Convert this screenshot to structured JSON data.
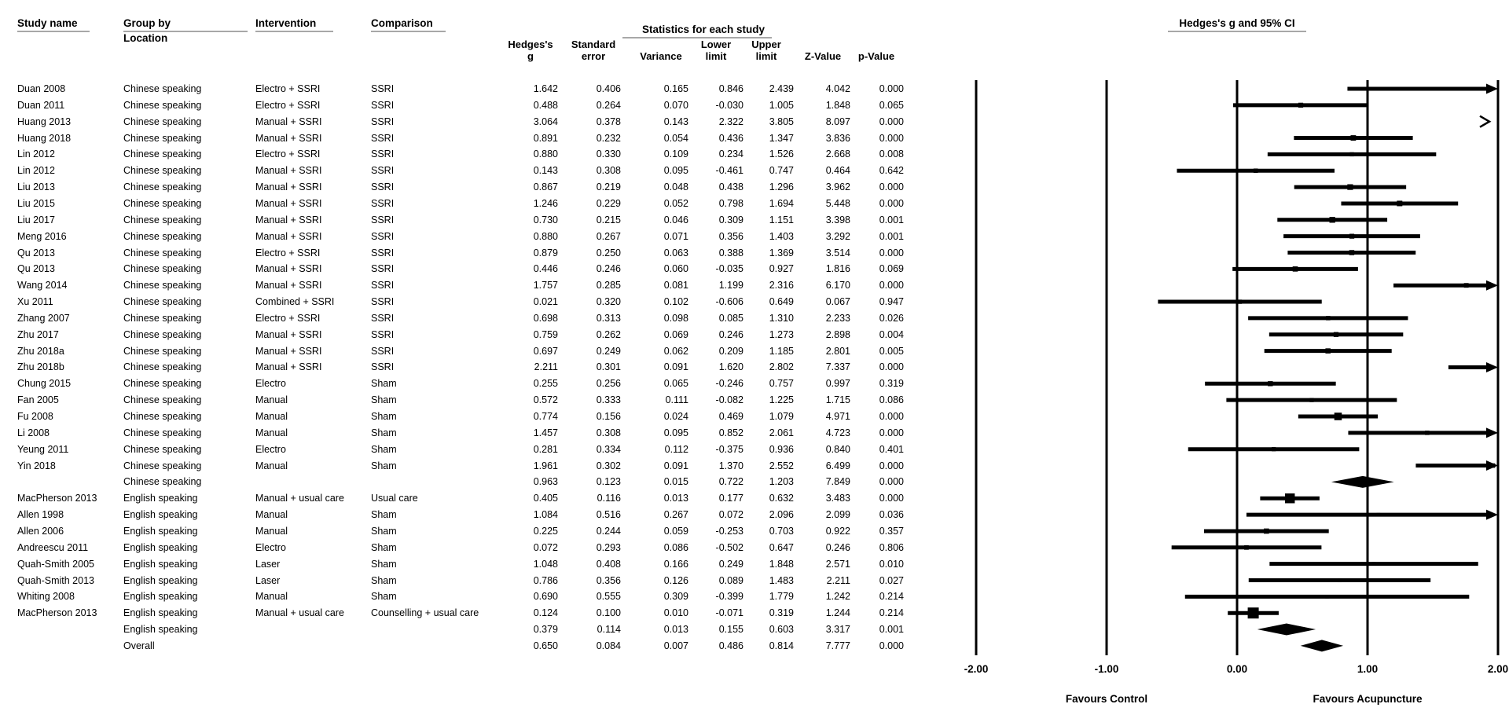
{
  "header": {
    "study": "Study name",
    "group_line1": "Group by",
    "group_line2": "Location",
    "intervention": "Intervention",
    "comparison": "Comparison",
    "stats_title": "Statistics for each study",
    "plot_title": "Hedges's g and 95% CI",
    "cols": {
      "g1": "Hedges's",
      "g2": "g",
      "se1": "Standard",
      "se2": "error",
      "variance": "Variance",
      "lo1": "Lower",
      "lo2": "limit",
      "up1": "Upper",
      "up2": "limit",
      "z": "Z-Value",
      "p": "p-Value"
    }
  },
  "axis": {
    "ticks": [
      "-2.00",
      "-1.00",
      "0.00",
      "1.00",
      "2.00"
    ],
    "tick_values": [
      -2,
      -1,
      0,
      1,
      2
    ],
    "xlim": [
      -2,
      2
    ],
    "favours_left": "Favours Control",
    "favours_right": "Favours Acupuncture"
  },
  "colors": {
    "text": "#000000",
    "underline": "#a8a8a8",
    "marker": "#000000"
  },
  "chart_data": {
    "type": "forest",
    "effect_measure": "Hedges's g",
    "xlim": [
      -2,
      2
    ],
    "rows": [
      {
        "study": "Duan 2008",
        "group": "Chinese speaking",
        "intervention": "Electro + SSRI",
        "comparison": "SSRI",
        "g": "1.642",
        "se": "0.406",
        "variance": "0.165",
        "lower": "0.846",
        "upper": "2.439",
        "z": "4.042",
        "p": "0.000",
        "kind": "study"
      },
      {
        "study": "Duan 2011",
        "group": "Chinese speaking",
        "intervention": "Electro + SSRI",
        "comparison": "SSRI",
        "g": "0.488",
        "se": "0.264",
        "variance": "0.070",
        "lower": "-0.030",
        "upper": "1.005",
        "z": "1.848",
        "p": "0.065",
        "kind": "study"
      },
      {
        "study": "Huang 2013",
        "group": "Chinese speaking",
        "intervention": "Manual + SSRI",
        "comparison": "SSRI",
        "g": "3.064",
        "se": "0.378",
        "variance": "0.143",
        "lower": "2.322",
        "upper": "3.805",
        "z": "8.097",
        "p": "0.000",
        "kind": "study"
      },
      {
        "study": "Huang 2018",
        "group": "Chinese speaking",
        "intervention": "Manual + SSRI",
        "comparison": "SSRI",
        "g": "0.891",
        "se": "0.232",
        "variance": "0.054",
        "lower": "0.436",
        "upper": "1.347",
        "z": "3.836",
        "p": "0.000",
        "kind": "study"
      },
      {
        "study": "Lin 2012",
        "group": "Chinese speaking",
        "intervention": "Electro + SSRI",
        "comparison": "SSRI",
        "g": "0.880",
        "se": "0.330",
        "variance": "0.109",
        "lower": "0.234",
        "upper": "1.526",
        "z": "2.668",
        "p": "0.008",
        "kind": "study"
      },
      {
        "study": "Lin 2012",
        "group": "Chinese speaking",
        "intervention": "Manual + SSRI",
        "comparison": "SSRI",
        "g": "0.143",
        "se": "0.308",
        "variance": "0.095",
        "lower": "-0.461",
        "upper": "0.747",
        "z": "0.464",
        "p": "0.642",
        "kind": "study"
      },
      {
        "study": "Liu 2013",
        "group": "Chinese speaking",
        "intervention": "Manual + SSRI",
        "comparison": "SSRI",
        "g": "0.867",
        "se": "0.219",
        "variance": "0.048",
        "lower": "0.438",
        "upper": "1.296",
        "z": "3.962",
        "p": "0.000",
        "kind": "study"
      },
      {
        "study": "Liu 2015",
        "group": "Chinese speaking",
        "intervention": "Manual + SSRI",
        "comparison": "SSRI",
        "g": "1.246",
        "se": "0.229",
        "variance": "0.052",
        "lower": "0.798",
        "upper": "1.694",
        "z": "5.448",
        "p": "0.000",
        "kind": "study"
      },
      {
        "study": "Liu 2017",
        "group": "Chinese speaking",
        "intervention": "Manual + SSRI",
        "comparison": "SSRI",
        "g": "0.730",
        "se": "0.215",
        "variance": "0.046",
        "lower": "0.309",
        "upper": "1.151",
        "z": "3.398",
        "p": "0.001",
        "kind": "study"
      },
      {
        "study": "Meng 2016",
        "group": "Chinese speaking",
        "intervention": "Manual + SSRI",
        "comparison": "SSRI",
        "g": "0.880",
        "se": "0.267",
        "variance": "0.071",
        "lower": "0.356",
        "upper": "1.403",
        "z": "3.292",
        "p": "0.001",
        "kind": "study"
      },
      {
        "study": "Qu 2013",
        "group": "Chinese speaking",
        "intervention": "Electro + SSRI",
        "comparison": "SSRI",
        "g": "0.879",
        "se": "0.250",
        "variance": "0.063",
        "lower": "0.388",
        "upper": "1.369",
        "z": "3.514",
        "p": "0.000",
        "kind": "study"
      },
      {
        "study": "Qu 2013",
        "group": "Chinese speaking",
        "intervention": "Manual + SSRI",
        "comparison": "SSRI",
        "g": "0.446",
        "se": "0.246",
        "variance": "0.060",
        "lower": "-0.035",
        "upper": "0.927",
        "z": "1.816",
        "p": "0.069",
        "kind": "study"
      },
      {
        "study": "Wang 2014",
        "group": "Chinese speaking",
        "intervention": "Manual + SSRI",
        "comparison": "SSRI",
        "g": "1.757",
        "se": "0.285",
        "variance": "0.081",
        "lower": "1.199",
        "upper": "2.316",
        "z": "6.170",
        "p": "0.000",
        "kind": "study"
      },
      {
        "study": "Xu 2011",
        "group": "Chinese speaking",
        "intervention": "Combined + SSRI",
        "comparison": "SSRI",
        "g": "0.021",
        "se": "0.320",
        "variance": "0.102",
        "lower": "-0.606",
        "upper": "0.649",
        "z": "0.067",
        "p": "0.947",
        "kind": "study"
      },
      {
        "study": "Zhang 2007",
        "group": "Chinese speaking",
        "intervention": "Electro + SSRI",
        "comparison": "SSRI",
        "g": "0.698",
        "se": "0.313",
        "variance": "0.098",
        "lower": "0.085",
        "upper": "1.310",
        "z": "2.233",
        "p": "0.026",
        "kind": "study"
      },
      {
        "study": "Zhu 2017",
        "group": "Chinese speaking",
        "intervention": "Manual + SSRI",
        "comparison": "SSRI",
        "g": "0.759",
        "se": "0.262",
        "variance": "0.069",
        "lower": "0.246",
        "upper": "1.273",
        "z": "2.898",
        "p": "0.004",
        "kind": "study"
      },
      {
        "study": "Zhu 2018a",
        "group": "Chinese speaking",
        "intervention": "Manual + SSRI",
        "comparison": "SSRI",
        "g": "0.697",
        "se": "0.249",
        "variance": "0.062",
        "lower": "0.209",
        "upper": "1.185",
        "z": "2.801",
        "p": "0.005",
        "kind": "study"
      },
      {
        "study": "Zhu 2018b",
        "group": "Chinese speaking",
        "intervention": "Manual + SSRI",
        "comparison": "SSRI",
        "g": "2.211",
        "se": "0.301",
        "variance": "0.091",
        "lower": "1.620",
        "upper": "2.802",
        "z": "7.337",
        "p": "0.000",
        "kind": "study"
      },
      {
        "study": "Chung 2015",
        "group": "Chinese speaking",
        "intervention": "Electro",
        "comparison": "Sham",
        "g": "0.255",
        "se": "0.256",
        "variance": "0.065",
        "lower": "-0.246",
        "upper": "0.757",
        "z": "0.997",
        "p": "0.319",
        "kind": "study"
      },
      {
        "study": "Fan 2005",
        "group": "Chinese speaking",
        "intervention": "Manual",
        "comparison": "Sham",
        "g": "0.572",
        "se": "0.333",
        "variance": "0.111",
        "lower": "-0.082",
        "upper": "1.225",
        "z": "1.715",
        "p": "0.086",
        "kind": "study"
      },
      {
        "study": "Fu 2008",
        "group": "Chinese speaking",
        "intervention": "Manual",
        "comparison": "Sham",
        "g": "0.774",
        "se": "0.156",
        "variance": "0.024",
        "lower": "0.469",
        "upper": "1.079",
        "z": "4.971",
        "p": "0.000",
        "kind": "study"
      },
      {
        "study": "Li 2008",
        "group": "Chinese speaking",
        "intervention": "Manual",
        "comparison": "Sham",
        "g": "1.457",
        "se": "0.308",
        "variance": "0.095",
        "lower": "0.852",
        "upper": "2.061",
        "z": "4.723",
        "p": "0.000",
        "kind": "study"
      },
      {
        "study": "Yeung 2011",
        "group": "Chinese speaking",
        "intervention": "Electro",
        "comparison": "Sham",
        "g": "0.281",
        "se": "0.334",
        "variance": "0.112",
        "lower": "-0.375",
        "upper": "0.936",
        "z": "0.840",
        "p": "0.401",
        "kind": "study"
      },
      {
        "study": "Yin 2018",
        "group": "Chinese speaking",
        "intervention": "Manual",
        "comparison": "Sham",
        "g": "1.961",
        "se": "0.302",
        "variance": "0.091",
        "lower": "1.370",
        "upper": "2.552",
        "z": "6.499",
        "p": "0.000",
        "kind": "study"
      },
      {
        "study": "",
        "group": "Chinese speaking",
        "intervention": "",
        "comparison": "",
        "g": "0.963",
        "se": "0.123",
        "variance": "0.015",
        "lower": "0.722",
        "upper": "1.203",
        "z": "7.849",
        "p": "0.000",
        "kind": "subtotal"
      },
      {
        "study": "MacPherson 2013",
        "group": "English speaking",
        "intervention": "Manual + usual care",
        "comparison": "Usual care",
        "g": "0.405",
        "se": "0.116",
        "variance": "0.013",
        "lower": "0.177",
        "upper": "0.632",
        "z": "3.483",
        "p": "0.000",
        "kind": "study"
      },
      {
        "study": "Allen 1998",
        "group": "English speaking",
        "intervention": "Manual",
        "comparison": "Sham",
        "g": "1.084",
        "se": "0.516",
        "variance": "0.267",
        "lower": "0.072",
        "upper": "2.096",
        "z": "2.099",
        "p": "0.036",
        "kind": "study"
      },
      {
        "study": "Allen 2006",
        "group": "English speaking",
        "intervention": "Manual",
        "comparison": "Sham",
        "g": "0.225",
        "se": "0.244",
        "variance": "0.059",
        "lower": "-0.253",
        "upper": "0.703",
        "z": "0.922",
        "p": "0.357",
        "kind": "study"
      },
      {
        "study": "Andreescu 2011",
        "group": "English speaking",
        "intervention": "Electro",
        "comparison": "Sham",
        "g": "0.072",
        "se": "0.293",
        "variance": "0.086",
        "lower": "-0.502",
        "upper": "0.647",
        "z": "0.246",
        "p": "0.806",
        "kind": "study"
      },
      {
        "study": "Quah-Smith 2005",
        "group": "English speaking",
        "intervention": "Laser",
        "comparison": "Sham",
        "g": "1.048",
        "se": "0.408",
        "variance": "0.166",
        "lower": "0.249",
        "upper": "1.848",
        "z": "2.571",
        "p": "0.010",
        "kind": "study"
      },
      {
        "study": "Quah-Smith 2013",
        "group": "English speaking",
        "intervention": "Laser",
        "comparison": "Sham",
        "g": "0.786",
        "se": "0.356",
        "variance": "0.126",
        "lower": "0.089",
        "upper": "1.483",
        "z": "2.211",
        "p": "0.027",
        "kind": "study"
      },
      {
        "study": "Whiting 2008",
        "group": "English speaking",
        "intervention": "Manual",
        "comparison": "Sham",
        "g": "0.690",
        "se": "0.555",
        "variance": "0.309",
        "lower": "-0.399",
        "upper": "1.779",
        "z": "1.242",
        "p": "0.214",
        "kind": "study"
      },
      {
        "study": "MacPherson 2013",
        "group": "English speaking",
        "intervention": "Manual + usual care",
        "comparison": "Counselling + usual care",
        "g": "0.124",
        "se": "0.100",
        "variance": "0.010",
        "lower": "-0.071",
        "upper": "0.319",
        "z": "1.244",
        "p": "0.214",
        "kind": "study"
      },
      {
        "study": "",
        "group": "English speaking",
        "intervention": "",
        "comparison": "",
        "g": "0.379",
        "se": "0.114",
        "variance": "0.013",
        "lower": "0.155",
        "upper": "0.603",
        "z": "3.317",
        "p": "0.001",
        "kind": "subtotal"
      },
      {
        "study": "",
        "group": "Overall",
        "intervention": "",
        "comparison": "",
        "g": "0.650",
        "se": "0.084",
        "variance": "0.007",
        "lower": "0.486",
        "upper": "0.814",
        "z": "7.777",
        "p": "0.000",
        "kind": "overall"
      }
    ]
  }
}
